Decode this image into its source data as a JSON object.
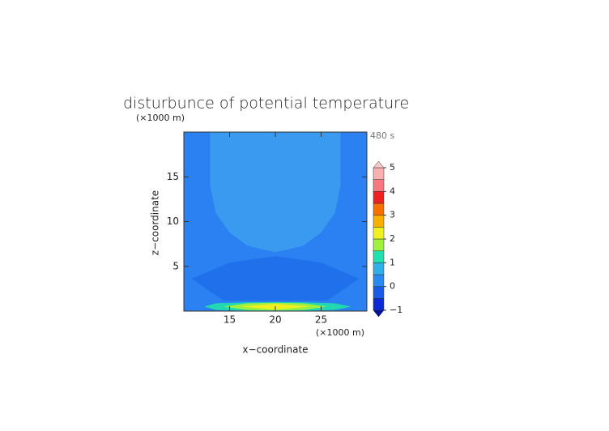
{
  "chart_data": {
    "type": "contour",
    "title": "disturbunce of potential temperature",
    "annotation": "480 s",
    "x_label": "x−coordinate",
    "y_label": "z−coordinate",
    "x_unit": "(×1000 m)",
    "y_unit": "(×1000 m)",
    "xlim": [
      10,
      30
    ],
    "ylim": [
      0,
      20
    ],
    "xticks": [
      15,
      20,
      25
    ],
    "yticks": [
      5,
      10,
      15
    ],
    "regions": [
      {
        "color": "#2b80f2",
        "x": [
          10,
          30,
          30,
          10
        ],
        "y": [
          0,
          0,
          20,
          20
        ]
      },
      {
        "color": "#1f70ea",
        "x": [
          10,
          30,
          30,
          25,
          20,
          15,
          10
        ],
        "y": [
          1.2,
          1.2,
          3.2,
          5.4,
          6.1,
          5.4,
          3.2
        ]
      },
      {
        "color": "#2b80f2",
        "x": [
          10,
          16,
          10
        ],
        "y": [
          0,
          0,
          4.2
        ]
      },
      {
        "color": "#2b80f2",
        "x": [
          30,
          24,
          30
        ],
        "y": [
          0,
          0,
          4.2
        ]
      },
      {
        "color": "#3a9af0",
        "x": [
          12.9,
          12.9,
          13.5,
          15,
          17,
          20,
          23,
          25,
          26.5,
          27.1,
          27.1
        ],
        "y": [
          20,
          14,
          11,
          8.8,
          7.3,
          6.6,
          7.3,
          8.8,
          11,
          14,
          20
        ]
      },
      {
        "color": "#22d8b0",
        "x": [
          12.3,
          13.5,
          17,
          20,
          23,
          26.5,
          28.2,
          26.5,
          23,
          20,
          17,
          13.5
        ],
        "y": [
          0.5,
          0.85,
          0.95,
          0.97,
          0.95,
          0.85,
          0.5,
          0.15,
          0.05,
          0.03,
          0.05,
          0.15
        ]
      },
      {
        "color": "#a0f040",
        "x": [
          14.5,
          17,
          20,
          23,
          25.5,
          23,
          20,
          17
        ],
        "y": [
          0.5,
          0.85,
          0.9,
          0.85,
          0.5,
          0.15,
          0.1,
          0.15
        ]
      },
      {
        "color": "#f0f020",
        "x": [
          16.5,
          20,
          23.5,
          20
        ],
        "y": [
          0.5,
          0.8,
          0.5,
          0.2
        ]
      }
    ],
    "colorbar": {
      "levels": [
        -1,
        -0.5,
        0,
        0.5,
        1,
        1.5,
        2,
        2.5,
        3,
        3.5,
        4,
        4.5,
        5
      ],
      "colors": [
        "#0a2ad8",
        "#1a5ae8",
        "#2a8af0",
        "#30b0e8",
        "#20e0b0",
        "#a0f040",
        "#f0f020",
        "#f8b000",
        "#f87000",
        "#f02020",
        "#f87880",
        "#f8b0b0"
      ],
      "under_color": "#0010a0",
      "over_color": "#f8c8c8",
      "ticks": [
        {
          "value": -1,
          "label": "−1"
        },
        0,
        1,
        2,
        3,
        4,
        5
      ]
    }
  }
}
